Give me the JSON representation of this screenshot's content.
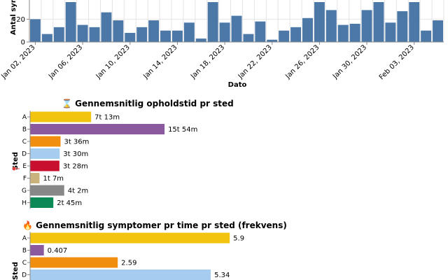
{
  "chart_data": [
    {
      "type": "bar",
      "title": "",
      "xlabel": "Dato",
      "ylabel": "Antal symp",
      "ylim": [
        0,
        35
      ],
      "yticks": [
        0,
        20
      ],
      "x_tick_labels": [
        "Jan 02, 2023",
        "Jan 06, 2023",
        "Jan 10, 2023",
        "Jan 14, 2023",
        "Jan 18, 2023",
        "Jan 22, 2023",
        "Jan 26, 2023",
        "Jan 30, 2023",
        "Feb 03, 2023"
      ],
      "bar_color": "#4c78a8",
      "values": [
        20,
        7,
        13,
        35,
        15,
        13,
        26,
        19,
        8,
        13,
        19,
        10,
        10,
        17,
        3,
        35,
        17,
        23,
        7,
        18,
        2,
        10,
        13,
        21,
        35,
        28,
        15,
        16,
        28,
        35,
        17,
        27,
        35,
        10,
        19
      ]
    },
    {
      "type": "bar",
      "orientation": "horizontal",
      "title": "⌛ Gennemsnitlig opholdstid pr sted",
      "xlabel": "",
      "ylabel": "Sted",
      "unit": "minutes",
      "xlim": [
        0,
        1500
      ],
      "categories": [
        "A",
        "B",
        "C",
        "D",
        "E",
        "F",
        "G",
        "H"
      ],
      "values": [
        433,
        954,
        216,
        210,
        208,
        67,
        242,
        165
      ],
      "value_labels": [
        "7t 13m",
        "15t 54m",
        "3t 36m",
        "3t 30m",
        "3t 28m",
        "1t 7m",
        "4t 2m",
        "2t 45m"
      ],
      "colors": [
        "#f2c40f",
        "#8b5a9e",
        "#f28e0f",
        "#a6cdef",
        "#c8102e",
        "#c9b27c",
        "#878787",
        "#0b8a55"
      ]
    },
    {
      "type": "bar",
      "orientation": "horizontal",
      "title": "🔥 Gennemsnitlig symptomer pr time pr sted (frekvens)",
      "xlabel": "",
      "ylabel": "Sted",
      "xlim": [
        0,
        9
      ],
      "categories": [
        "A",
        "B",
        "C",
        "D"
      ],
      "values": [
        5.9,
        0.407,
        2.59,
        5.34
      ],
      "value_labels": [
        "5.9",
        "0.407",
        "2.59",
        "5.34"
      ],
      "colors": [
        "#f2c40f",
        "#8b5a9e",
        "#f28e0f",
        "#a6cdef"
      ]
    }
  ]
}
